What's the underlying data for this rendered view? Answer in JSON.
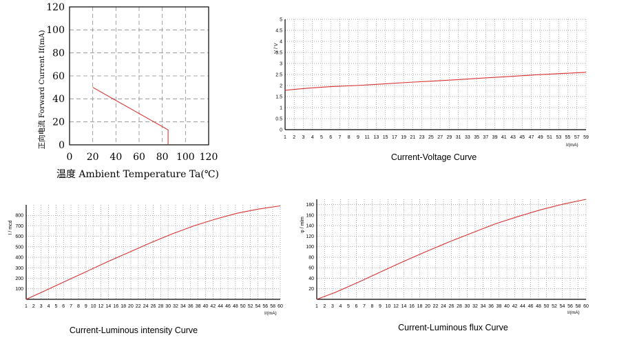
{
  "chart_data": [
    {
      "type": "line",
      "id": "derating",
      "title": "",
      "xlabel": "温度 Ambient Temperature Ta(℃)",
      "ylabel": "正向电流 Forward Current If(mA)",
      "xlim": [
        0,
        120
      ],
      "ylim": [
        0,
        120
      ],
      "x_ticks": [
        "0",
        "20",
        "40",
        "60",
        "80",
        "100",
        "120"
      ],
      "y_ticks": [
        "0",
        "20",
        "40",
        "60",
        "80",
        "100",
        "120"
      ],
      "grid": "dashed",
      "series": [
        {
          "x": [
            20,
            85,
            85
          ],
          "y": [
            50,
            13,
            0
          ]
        }
      ]
    },
    {
      "type": "line",
      "id": "iv",
      "title": "Current-Voltage Curve",
      "xlabel": "I/(mA)",
      "ylabel": "V / V",
      "xlim": [
        1,
        60
      ],
      "ylim": [
        0,
        5
      ],
      "x_ticks": [
        "1",
        "2",
        "3",
        "4",
        "5",
        "6",
        "7",
        "8",
        "9",
        "11",
        "13",
        "15",
        "17",
        "19",
        "21",
        "23",
        "25",
        "27",
        "29",
        "31",
        "33",
        "35",
        "37",
        "39",
        "41",
        "43",
        "45",
        "47",
        "49",
        "51",
        "53",
        "55",
        "57",
        "59"
      ],
      "y_ticks": [
        "0",
        "0.5",
        "1",
        "1.5",
        "2",
        "2.5",
        "3",
        "3.5",
        "4",
        "4.5",
        "5"
      ],
      "grid": "dotted",
      "series": [
        {
          "x": [
            1,
            3,
            5,
            8,
            10,
            15,
            20,
            25,
            30,
            35,
            40,
            45,
            50,
            55,
            60
          ],
          "y": [
            1.78,
            1.83,
            1.87,
            1.92,
            1.95,
            2.0,
            2.07,
            2.14,
            2.2,
            2.27,
            2.34,
            2.41,
            2.48,
            2.54,
            2.6
          ]
        }
      ]
    },
    {
      "type": "line",
      "id": "iiv",
      "title": "Current-Luminous intensity Curve",
      "xlabel": "I/(mA)",
      "ylabel": "I / mcd",
      "xlim": [
        1,
        60
      ],
      "ylim": [
        0,
        900
      ],
      "x_ticks": [
        "1",
        "2",
        "3",
        "4",
        "5",
        "6",
        "7",
        "8",
        "9",
        "10",
        "12",
        "14",
        "16",
        "18",
        "20",
        "22",
        "24",
        "26",
        "28",
        "30",
        "32",
        "34",
        "36",
        "38",
        "40",
        "42",
        "44",
        "46",
        "48",
        "50",
        "52",
        "54",
        "56",
        "58",
        "60"
      ],
      "y_ticks": [
        "100",
        "200",
        "300",
        "400",
        "500",
        "600",
        "700",
        "800"
      ],
      "grid": "dotted",
      "series": [
        {
          "x": [
            1,
            5,
            10,
            15,
            20,
            25,
            30,
            35,
            40,
            45,
            50,
            55,
            60
          ],
          "y": [
            0,
            75,
            170,
            265,
            360,
            450,
            540,
            625,
            700,
            765,
            820,
            860,
            890
          ]
        }
      ]
    },
    {
      "type": "line",
      "id": "iflux",
      "title": "Current-Luminous flux Curve",
      "xlabel": "I/(mA)",
      "ylabel": "φ / mlm",
      "xlim": [
        1,
        60
      ],
      "ylim": [
        0,
        190
      ],
      "x_ticks": [
        "1",
        "2",
        "3",
        "4",
        "5",
        "6",
        "7",
        "8",
        "9",
        "10",
        "12",
        "14",
        "16",
        "18",
        "20",
        "22",
        "24",
        "26",
        "28",
        "30",
        "32",
        "34",
        "36",
        "38",
        "40",
        "42",
        "44",
        "46",
        "48",
        "50",
        "52",
        "54",
        "56",
        "58",
        "60"
      ],
      "y_ticks": [
        "20",
        "40",
        "60",
        "80",
        "100",
        "120",
        "140",
        "160",
        "180"
      ],
      "grid": "dotted",
      "series": [
        {
          "x": [
            1,
            5,
            10,
            15,
            20,
            25,
            30,
            35,
            40,
            45,
            50,
            55,
            60
          ],
          "y": [
            0,
            13,
            32,
            52,
            72,
            91,
            109,
            126,
            143,
            157,
            170,
            181,
            190
          ]
        }
      ]
    }
  ],
  "colors": {
    "line": "#d93030",
    "axis": "#000000",
    "grid": "#8a8a8a"
  }
}
